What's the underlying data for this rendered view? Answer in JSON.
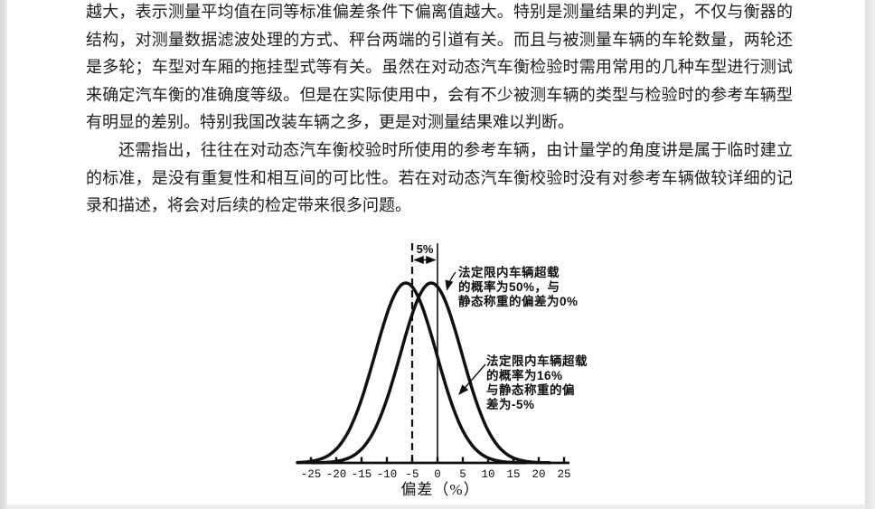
{
  "document": {
    "paragraphs": [
      {
        "indent_first": false,
        "lines": [
          "越大，表示测量平均值在同等标准偏差条件下偏离值越大。特别是测量结果的判定，不仅与衡器的",
          "结构，对测量数据滤波处理的方式、秤台两端的引道有关。而且与被测量车辆的车轮数量，两轮还",
          "是多轮；车型对车厢的拖挂型式等有关。虽然在对动态汽车衡检验时需用常用的几种车型进行测试",
          "来确定汽车衡的准确度等级。但是在实际使用中，会有不少被测车辆的类型与检验时的参考车辆型",
          "有明显的差别。特别我国改装车辆之多，更是对测量结果难以判断。"
        ]
      },
      {
        "indent_first": true,
        "lines": [
          "还需指出，往往在对动态汽车衡校验时所使用的参考车辆，由计量学的角度讲是属于临时建立",
          "的标准，是没有重复性和相互间的可比性。若在对动态汽车衡校验时没有对参考车辆做较详细的记",
          "录和描述，将会对后续的检定带来很多问题。"
        ]
      }
    ]
  },
  "chart_data": {
    "type": "line",
    "subtype": "normal-distribution-curves",
    "xlabel": "偏差（%）",
    "x_ticks": [
      -25,
      -20,
      -15,
      -10,
      -5,
      0,
      5,
      10,
      15,
      20,
      25
    ],
    "xlim": [
      -27,
      26
    ],
    "grid": false,
    "legend": "none",
    "sigma_percent": 5,
    "series": [
      {
        "mean_percent": 0,
        "overload_probability": "50%",
        "static_deviation": "0%",
        "annotation": [
          "法定限内车辆超载",
          "的概率为50%，与",
          "静态称重的偏差为0%"
        ]
      },
      {
        "mean_percent": -5,
        "overload_probability": "16%",
        "static_deviation": "-5%",
        "annotation": [
          "法定限内车辆超载",
          "的概率为16%",
          "与静态称重的偏",
          "差为-5%"
        ]
      }
    ],
    "reference_lines": [
      {
        "x": -5,
        "style": "dashed"
      },
      {
        "x": 0,
        "style": "solid"
      }
    ],
    "gap_label": "5%"
  }
}
